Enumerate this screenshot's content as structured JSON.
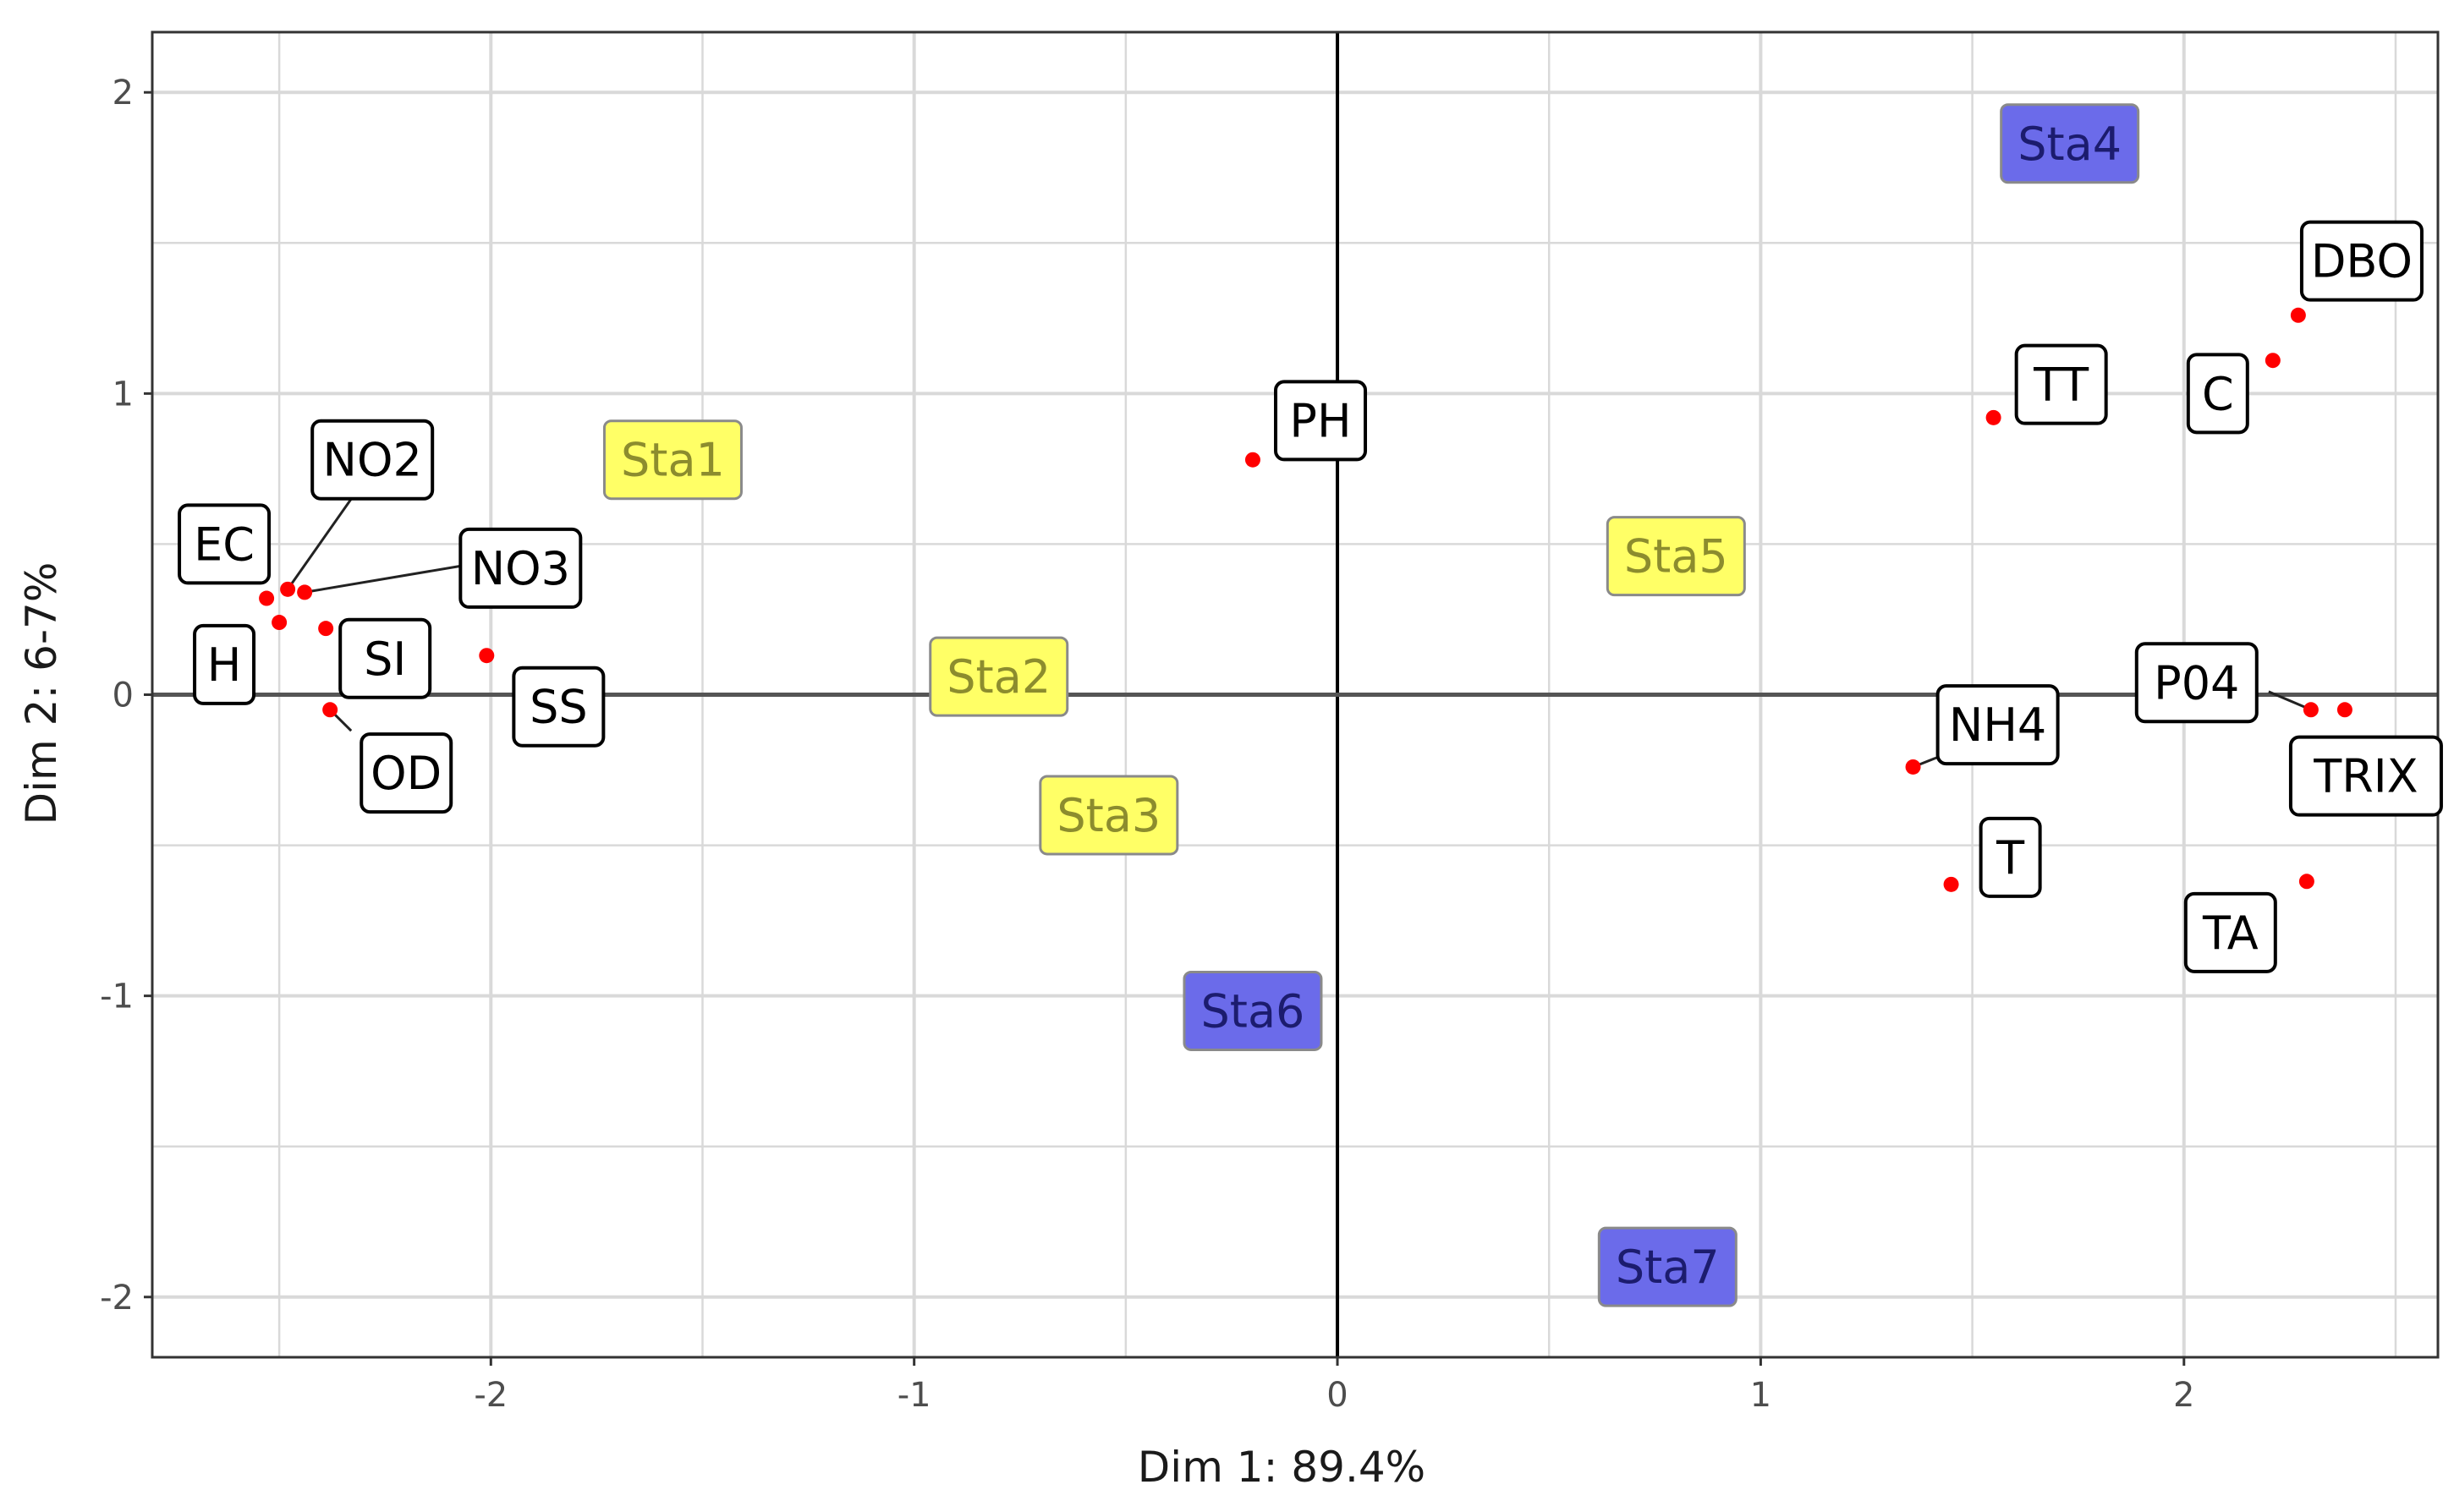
{
  "chart_data": {
    "type": "scatter",
    "title": "",
    "xlabel": "Dim 1: 89.4%",
    "ylabel": "Dim 2: 6-7%",
    "xlim": [
      -2.8,
      2.6
    ],
    "ylim": [
      -2.2,
      2.2
    ],
    "x_ticks": [
      -2,
      -1,
      0,
      1,
      2
    ],
    "x_tick_labels": [
      "-2",
      "-1",
      "0",
      "1",
      "2"
    ],
    "y_ticks": [
      -2,
      -1,
      0,
      1,
      2
    ],
    "y_tick_labels": [
      "-2",
      "-1",
      "0",
      "1",
      "2"
    ],
    "grid": true,
    "reference_lines": {
      "x": 0,
      "y": 0
    },
    "variables": [
      {
        "name": "DBO",
        "x": 2.27,
        "y": 1.26,
        "label": "DBO",
        "lx": 2.42,
        "ly": 1.44
      },
      {
        "name": "C",
        "x": 2.21,
        "y": 1.11,
        "label": "C",
        "lx": 2.08,
        "ly": 1.0
      },
      {
        "name": "TT",
        "x": 1.55,
        "y": 0.92,
        "label": "TT",
        "lx": 1.71,
        "ly": 1.03
      },
      {
        "name": "PH",
        "x": -0.2,
        "y": 0.78,
        "label": "PH",
        "lx": -0.04,
        "ly": 0.91
      },
      {
        "name": "NO2",
        "x": -2.48,
        "y": 0.35,
        "label": "NO2",
        "lx": -2.28,
        "ly": 0.78
      },
      {
        "name": "EC",
        "x": -2.53,
        "y": 0.32,
        "label": "EC",
        "lx": -2.63,
        "ly": 0.5
      },
      {
        "name": "NO3",
        "x": -2.44,
        "y": 0.34,
        "label": "NO3",
        "lx": -1.93,
        "ly": 0.42
      },
      {
        "name": "H",
        "x": -2.5,
        "y": 0.24,
        "label": "H",
        "lx": -2.63,
        "ly": 0.1
      },
      {
        "name": "SI",
        "x": -2.39,
        "y": 0.22,
        "label": "SI",
        "lx": -2.25,
        "ly": 0.12
      },
      {
        "name": "SS",
        "x": -2.01,
        "y": 0.13,
        "label": "SS",
        "lx": -1.84,
        "ly": -0.04
      },
      {
        "name": "OD",
        "x": -2.38,
        "y": -0.05,
        "label": "OD",
        "lx": -2.2,
        "ly": -0.26
      },
      {
        "name": "P04",
        "x": 2.3,
        "y": -0.05,
        "label": "P04",
        "lx": 2.03,
        "ly": 0.04
      },
      {
        "name": "TRIX",
        "x": 2.38,
        "y": -0.05,
        "label": "TRIX",
        "lx": 2.43,
        "ly": -0.27
      },
      {
        "name": "NH4",
        "x": 1.36,
        "y": -0.24,
        "label": "NH4",
        "lx": 1.56,
        "ly": -0.1
      },
      {
        "name": "T",
        "x": 1.45,
        "y": -0.63,
        "label": "T",
        "lx": 1.59,
        "ly": -0.54
      },
      {
        "name": "TA",
        "x": 2.29,
        "y": -0.62,
        "label": "TA",
        "lx": 2.11,
        "ly": -0.79
      }
    ],
    "stations": [
      {
        "name": "Sta1",
        "x": -1.57,
        "y": 0.78,
        "group": "yellow"
      },
      {
        "name": "Sta2",
        "x": -0.8,
        "y": 0.06,
        "group": "yellow"
      },
      {
        "name": "Sta3",
        "x": -0.54,
        "y": -0.4,
        "group": "yellow"
      },
      {
        "name": "Sta5",
        "x": 0.8,
        "y": 0.46,
        "group": "yellow"
      },
      {
        "name": "Sta4",
        "x": 1.73,
        "y": 1.83,
        "group": "blue"
      },
      {
        "name": "Sta6",
        "x": -0.2,
        "y": -1.05,
        "group": "blue"
      },
      {
        "name": "Sta7",
        "x": 0.78,
        "y": -1.9,
        "group": "blue"
      }
    ],
    "leaders": [
      {
        "from": [
          -2.48,
          0.35
        ],
        "to": [
          -2.32,
          0.67
        ]
      },
      {
        "from": [
          -2.44,
          0.34
        ],
        "to": [
          -2.06,
          0.43
        ]
      },
      {
        "from": [
          -2.38,
          -0.05
        ],
        "to": [
          -2.33,
          -0.12
        ]
      },
      {
        "from": [
          2.3,
          -0.05
        ],
        "to": [
          2.2,
          0.01
        ]
      },
      {
        "from": [
          1.36,
          -0.24
        ],
        "to": [
          1.45,
          -0.19
        ]
      }
    ]
  },
  "colors": {
    "point": "#ff0000",
    "yellow_fill": "#ffff66",
    "yellow_text": "#8c8c2e",
    "blue_fill": "#6b6bea",
    "blue_text": "#1c1c6e",
    "grid": "#d9d9d9",
    "axis_line": "#000000",
    "panel_border": "#333333"
  }
}
